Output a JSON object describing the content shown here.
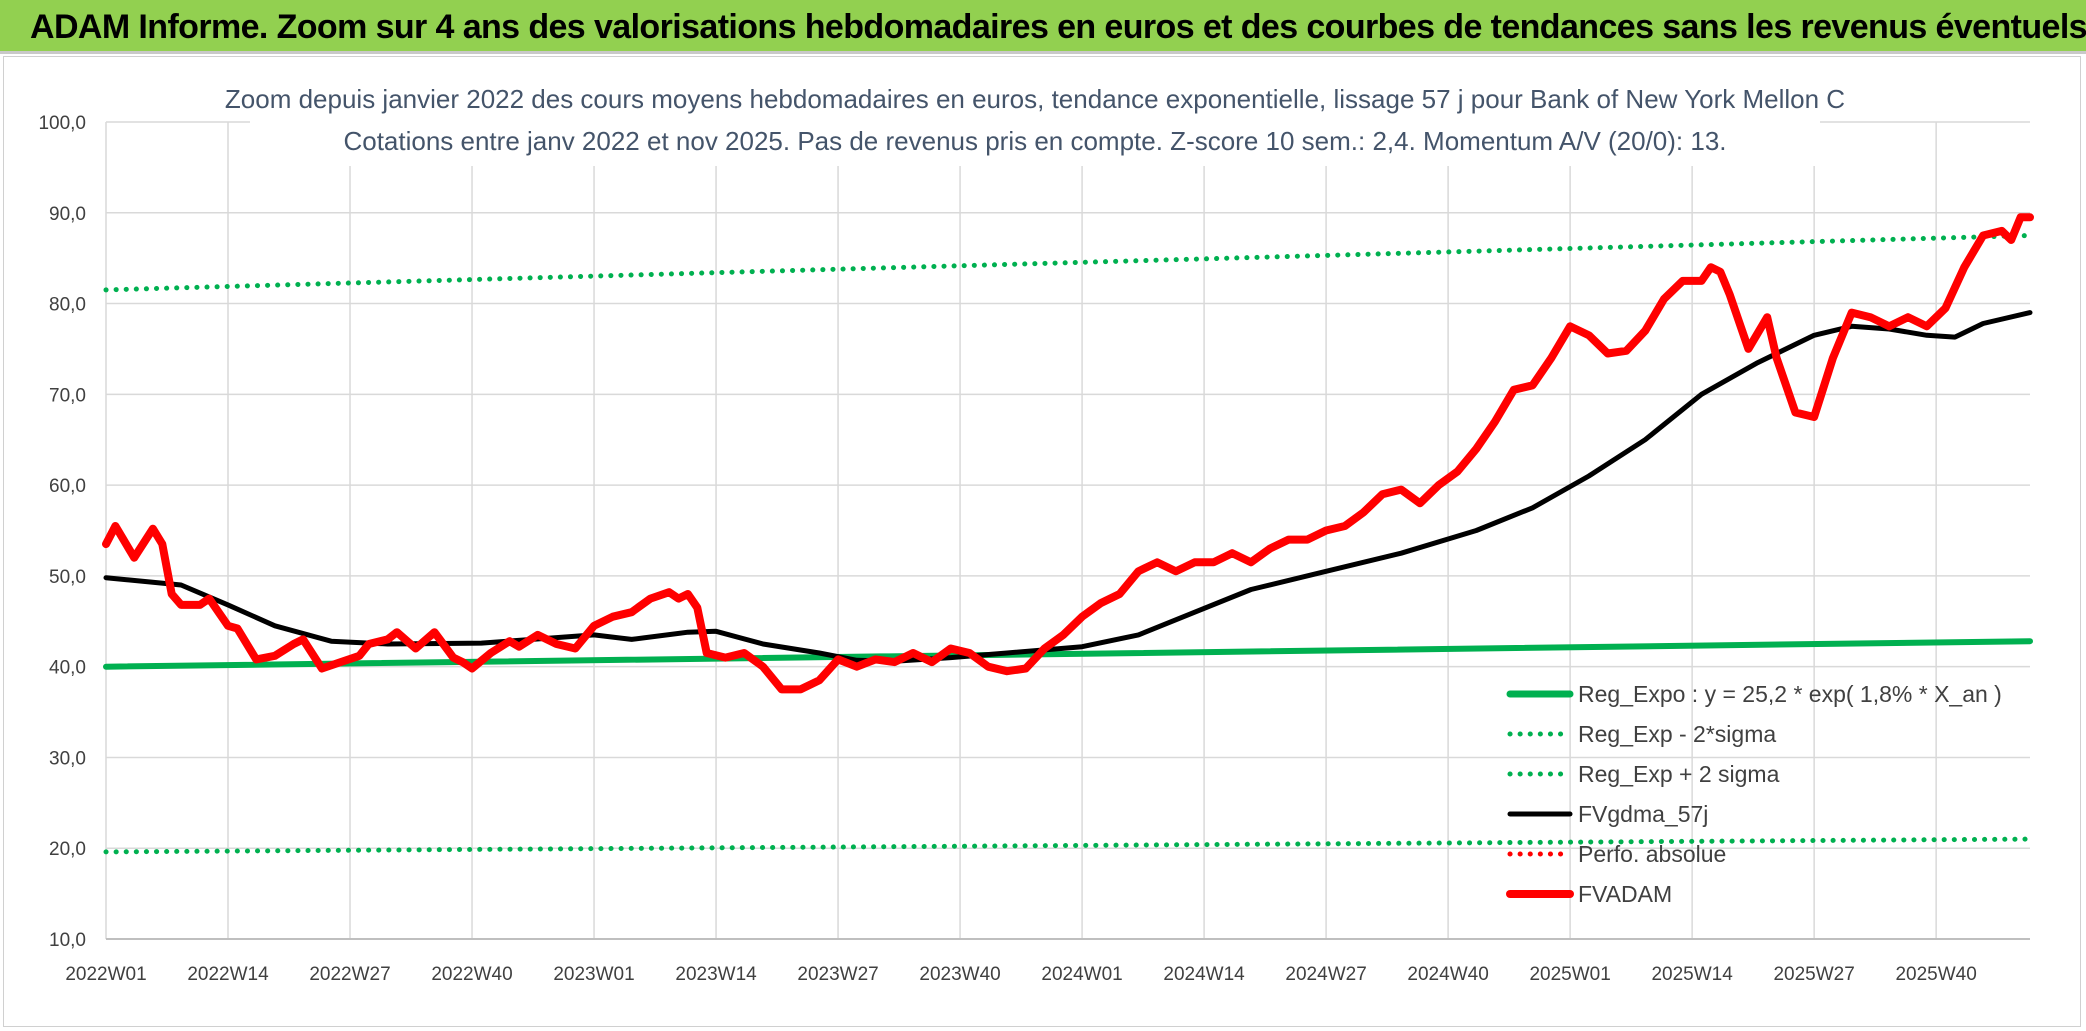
{
  "banner": {
    "title": "ADAM Informe. Zoom sur 4 ans des valorisations hebdomadaires en euros et des courbes de tendances sans les revenus éventuels",
    "color": "#92d050"
  },
  "chart_data": {
    "type": "line",
    "title": "Zoom depuis janvier 2022 des cours moyens hebdomadaires en euros, tendance exponentielle, lissage 57 j pour Bank of New York Mellon C",
    "subtitle": "Cotations entre janv 2022 et nov 2025. Pas de revenus pris en compte. Z-score 10 sem.: 2,4. Momentum A/V (20/0): 13.",
    "xlabel": "",
    "ylabel": "",
    "ylim": [
      10,
      100
    ],
    "yticks": [
      "10,0",
      "20,0",
      "30,0",
      "40,0",
      "50,0",
      "60,0",
      "70,0",
      "80,0",
      "90,0",
      "100,0"
    ],
    "xticks": [
      "2022W01",
      "2022W14",
      "2022W27",
      "2022W40",
      "2023W01",
      "2023W14",
      "2023W27",
      "2023W40",
      "2024W01",
      "2024W14",
      "2024W27",
      "2024W40",
      "2025W01",
      "2025W14",
      "2025W27",
      "2025W40"
    ],
    "grid": true,
    "legend_position": "bottom-right",
    "week_count": 206,
    "series": [
      {
        "name": "Reg_Expo : y = 25,2 * exp( 1,8% *  X_an )",
        "color": "#00b050",
        "style": "solid",
        "points": [
          [
            0,
            40.0
          ],
          [
            205,
            42.8
          ]
        ]
      },
      {
        "name": "Reg_Exp - 2*sigma",
        "color": "#00b050",
        "style": "dotted",
        "points": [
          [
            0,
            19.6
          ],
          [
            205,
            21.0
          ]
        ]
      },
      {
        "name": "Reg_Exp + 2 sigma",
        "color": "#00b050",
        "style": "dotted",
        "points": [
          [
            0,
            81.5
          ],
          [
            205,
            87.5
          ]
        ]
      },
      {
        "name": "FVgdma_57j",
        "color": "#000000",
        "style": "solid",
        "points": [
          [
            0,
            49.8
          ],
          [
            8,
            49.0
          ],
          [
            13,
            46.8
          ],
          [
            18,
            44.5
          ],
          [
            24,
            42.8
          ],
          [
            30,
            42.5
          ],
          [
            40,
            42.6
          ],
          [
            52,
            43.5
          ],
          [
            56,
            43.0
          ],
          [
            62,
            43.8
          ],
          [
            65,
            43.9
          ],
          [
            70,
            42.5
          ],
          [
            76,
            41.5
          ],
          [
            80,
            40.7
          ],
          [
            84,
            40.6
          ],
          [
            90,
            41.0
          ],
          [
            96,
            41.5
          ],
          [
            104,
            42.2
          ],
          [
            110,
            43.5
          ],
          [
            116,
            46.0
          ],
          [
            122,
            48.5
          ],
          [
            130,
            50.5
          ],
          [
            138,
            52.5
          ],
          [
            146,
            55.0
          ],
          [
            152,
            57.5
          ],
          [
            158,
            61.0
          ],
          [
            164,
            65.0
          ],
          [
            170,
            70.0
          ],
          [
            176,
            73.5
          ],
          [
            182,
            76.5
          ],
          [
            186,
            77.5
          ],
          [
            190,
            77.2
          ],
          [
            194,
            76.5
          ],
          [
            197,
            76.3
          ],
          [
            200,
            77.8
          ],
          [
            205,
            79.0
          ]
        ]
      },
      {
        "name": "Perfo. absolue",
        "color": "#ff0000",
        "style": "dotted",
        "points": []
      },
      {
        "name": "FVADAM",
        "color": "#ff0000",
        "style": "solid",
        "points": [
          [
            0,
            53.5
          ],
          [
            1,
            55.5
          ],
          [
            3,
            52.0
          ],
          [
            5,
            55.2
          ],
          [
            6,
            53.5
          ],
          [
            7,
            48.0
          ],
          [
            8,
            46.8
          ],
          [
            10,
            46.8
          ],
          [
            11,
            47.5
          ],
          [
            13,
            44.5
          ],
          [
            14,
            44.2
          ],
          [
            16,
            40.8
          ],
          [
            18,
            41.2
          ],
          [
            20,
            42.5
          ],
          [
            21,
            43.0
          ],
          [
            23,
            39.8
          ],
          [
            25,
            40.5
          ],
          [
            27,
            41.2
          ],
          [
            28,
            42.5
          ],
          [
            30,
            43.0
          ],
          [
            31,
            43.8
          ],
          [
            33,
            42.0
          ],
          [
            35,
            43.8
          ],
          [
            37,
            41.0
          ],
          [
            38,
            40.5
          ],
          [
            39,
            39.8
          ],
          [
            41,
            41.5
          ],
          [
            43,
            42.8
          ],
          [
            44,
            42.2
          ],
          [
            46,
            43.5
          ],
          [
            48,
            42.5
          ],
          [
            50,
            42.0
          ],
          [
            52,
            44.5
          ],
          [
            54,
            45.5
          ],
          [
            56,
            46.0
          ],
          [
            58,
            47.5
          ],
          [
            60,
            48.2
          ],
          [
            61,
            47.5
          ],
          [
            62,
            48.0
          ],
          [
            63,
            46.5
          ],
          [
            64,
            41.5
          ],
          [
            66,
            41.0
          ],
          [
            68,
            41.5
          ],
          [
            70,
            40.0
          ],
          [
            72,
            37.5
          ],
          [
            74,
            37.5
          ],
          [
            76,
            38.5
          ],
          [
            78,
            40.8
          ],
          [
            80,
            40.0
          ],
          [
            82,
            40.8
          ],
          [
            84,
            40.5
          ],
          [
            86,
            41.5
          ],
          [
            88,
            40.5
          ],
          [
            90,
            42.0
          ],
          [
            92,
            41.5
          ],
          [
            94,
            40.0
          ],
          [
            96,
            39.5
          ],
          [
            98,
            39.8
          ],
          [
            100,
            42.0
          ],
          [
            102,
            43.5
          ],
          [
            104,
            45.5
          ],
          [
            106,
            47.0
          ],
          [
            108,
            48.0
          ],
          [
            110,
            50.5
          ],
          [
            112,
            51.5
          ],
          [
            114,
            50.5
          ],
          [
            116,
            51.5
          ],
          [
            118,
            51.5
          ],
          [
            120,
            52.5
          ],
          [
            122,
            51.5
          ],
          [
            124,
            53.0
          ],
          [
            126,
            54.0
          ],
          [
            128,
            54.0
          ],
          [
            130,
            55.0
          ],
          [
            132,
            55.5
          ],
          [
            134,
            57.0
          ],
          [
            136,
            59.0
          ],
          [
            138,
            59.5
          ],
          [
            140,
            58.0
          ],
          [
            142,
            60.0
          ],
          [
            144,
            61.5
          ],
          [
            146,
            64.0
          ],
          [
            148,
            67.0
          ],
          [
            150,
            70.5
          ],
          [
            152,
            71.0
          ],
          [
            154,
            74.0
          ],
          [
            156,
            77.5
          ],
          [
            158,
            76.5
          ],
          [
            160,
            74.5
          ],
          [
            162,
            74.8
          ],
          [
            164,
            77.0
          ],
          [
            166,
            80.5
          ],
          [
            168,
            82.5
          ],
          [
            170,
            82.5
          ],
          [
            171,
            84.0
          ],
          [
            172,
            83.5
          ],
          [
            173,
            81.0
          ],
          [
            175,
            75.0
          ],
          [
            177,
            78.5
          ],
          [
            178,
            74.0
          ],
          [
            180,
            68.0
          ],
          [
            182,
            67.5
          ],
          [
            184,
            74.0
          ],
          [
            186,
            79.0
          ],
          [
            188,
            78.5
          ],
          [
            190,
            77.5
          ],
          [
            192,
            78.5
          ],
          [
            194,
            77.5
          ],
          [
            196,
            79.5
          ],
          [
            198,
            84.0
          ],
          [
            200,
            87.5
          ],
          [
            202,
            88.0
          ],
          [
            203,
            87.0
          ],
          [
            204,
            89.5
          ],
          [
            205,
            89.5
          ]
        ]
      }
    ],
    "legend": [
      {
        "label": "Reg_Expo : y = 25,2 * exp( 1,8% *  X_an )",
        "color": "#00b050",
        "style": "solid"
      },
      {
        "label": "Reg_Exp - 2*sigma",
        "color": "#00b050",
        "style": "dotted"
      },
      {
        "label": "Reg_Exp + 2 sigma",
        "color": "#00b050",
        "style": "dotted"
      },
      {
        "label": "FVgdma_57j",
        "color": "#000000",
        "style": "solid"
      },
      {
        "label": "Perfo. absolue",
        "color": "#ff0000",
        "style": "dotted"
      },
      {
        "label": "FVADAM",
        "color": "#ff0000",
        "style": "solid"
      }
    ]
  }
}
